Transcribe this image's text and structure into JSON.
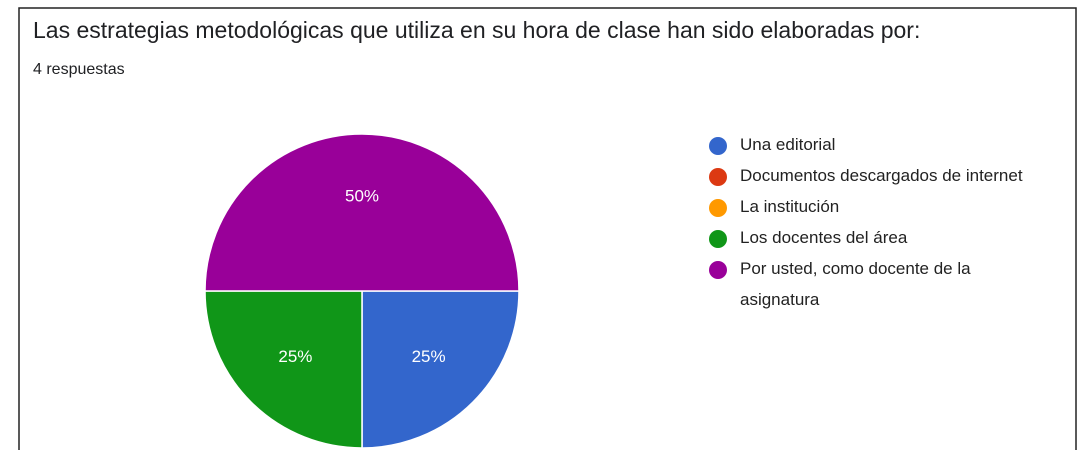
{
  "chart_data": {
    "type": "pie",
    "title": "Las estrategias metodológicas que utiliza en su hora de clase han sido elaboradas por:",
    "subtitle": "4 respuestas",
    "categories": [
      "Una editorial",
      "Documentos descargados de internet",
      "La institución",
      "Los docentes del área",
      "Por usted, como docente de la asignatura"
    ],
    "values": [
      25,
      0,
      0,
      25,
      50
    ],
    "value_labels": [
      "25%",
      null,
      null,
      "25%",
      "50%"
    ],
    "colors": [
      "#3366cc",
      "#dc3912",
      "#ff9900",
      "#109618",
      "#990099"
    ],
    "legend": "right"
  }
}
